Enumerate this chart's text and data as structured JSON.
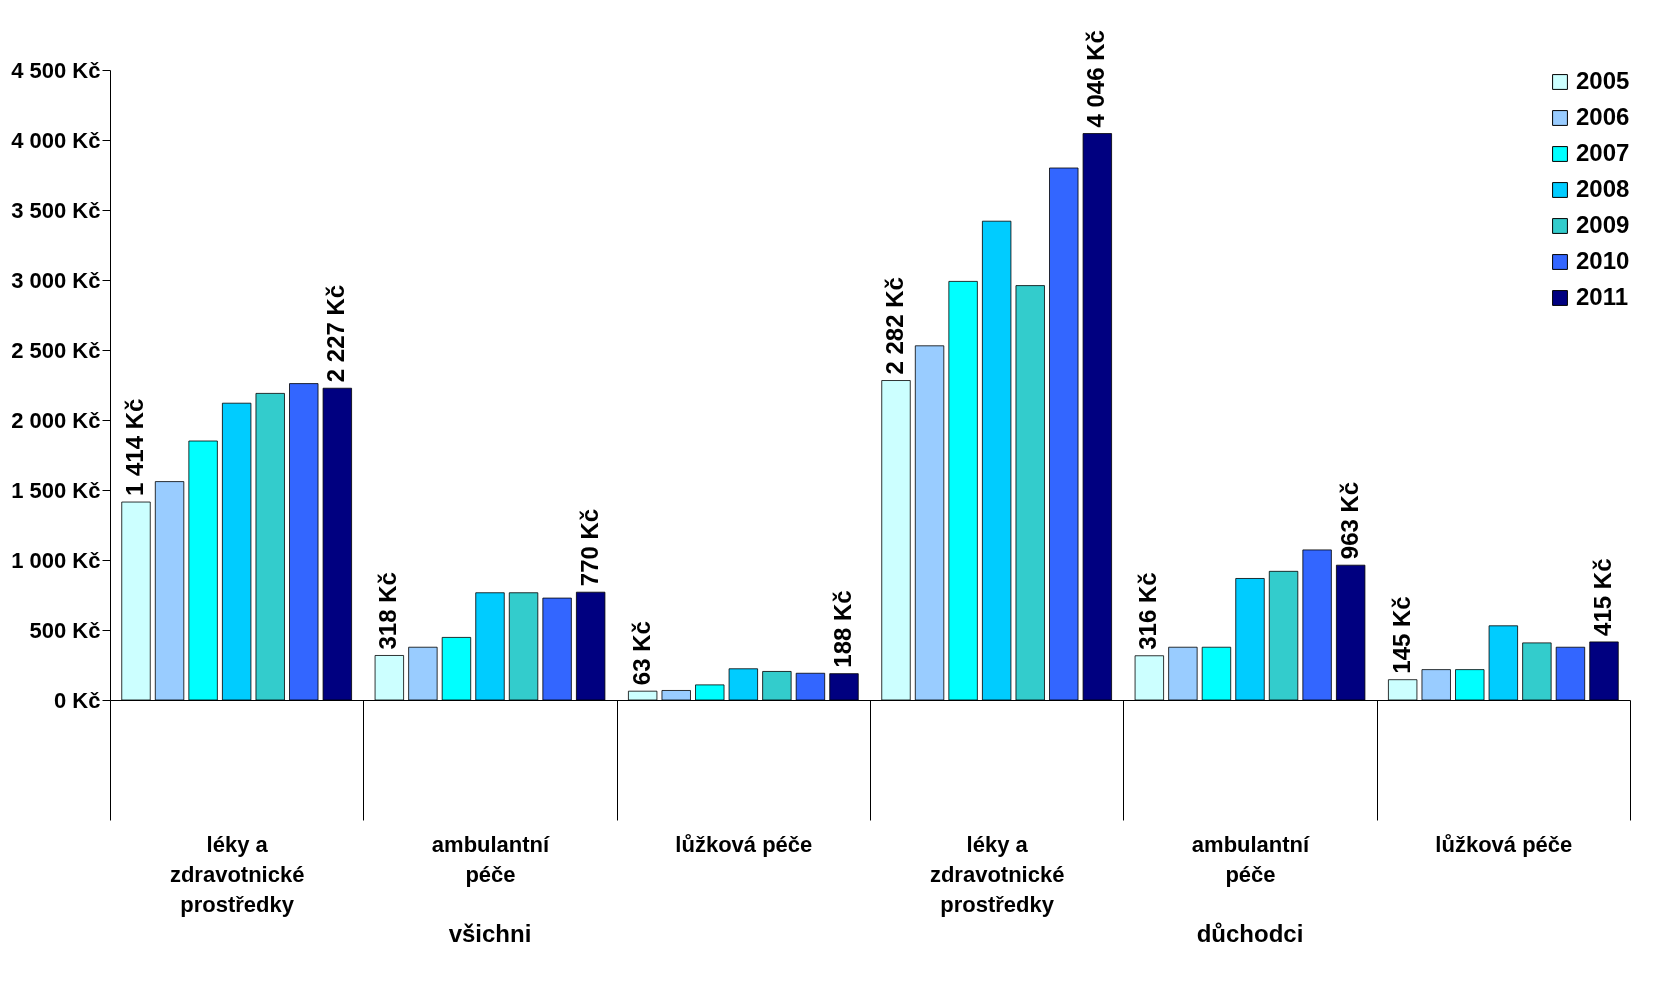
{
  "chart_data": {
    "type": "bar",
    "categories": [
      "léky a zdravotnické prostředky",
      "ambulantní péče",
      "lůžková péče",
      "léky a zdravotnické prostředky",
      "ambulantní péče",
      "lůžková péče"
    ],
    "annotations": [
      "všichni",
      "důchodci"
    ],
    "series": [
      {
        "name": "2005",
        "color": "#ccffff",
        "values": [
          1414,
          318,
          63,
          2282,
          316,
          145
        ],
        "value_labels": [
          "1 414 Kč",
          "318 Kč",
          "63 Kč",
          "2 282 Kč",
          "316 Kč",
          "145 Kč"
        ]
      },
      {
        "name": "2006",
        "color": "#99ccff",
        "values": [
          1560,
          377,
          68,
          2530,
          377,
          217
        ]
      },
      {
        "name": "2007",
        "color": "#00ffff",
        "values": [
          1850,
          447,
          108,
          2990,
          377,
          217
        ]
      },
      {
        "name": "2008",
        "color": "#00ccff",
        "values": [
          2120,
          766,
          223,
          3420,
          868,
          530
        ]
      },
      {
        "name": "2009",
        "color": "#33cccc",
        "values": [
          2190,
          766,
          204,
          2960,
          919,
          408
        ]
      },
      {
        "name": "2010",
        "color": "#3366ff",
        "values": [
          2260,
          728,
          191,
          3800,
          1072,
          377
        ]
      },
      {
        "name": "2011",
        "color": "#000080",
        "values": [
          2227,
          770,
          188,
          4046,
          963,
          415
        ],
        "value_labels": [
          "2 227 Kč",
          "770 Kč",
          "188 Kč",
          "4 046 Kč",
          "963 Kč",
          "415 Kč"
        ]
      }
    ],
    "ylim": [
      0,
      4500
    ],
    "yticks": [
      {
        "value": 0,
        "label": "0 Kč"
      },
      {
        "value": 500,
        "label": "500 Kč"
      },
      {
        "value": 1000,
        "label": "1 000 Kč"
      },
      {
        "value": 1500,
        "label": "1 500 Kč"
      },
      {
        "value": 2000,
        "label": "2 000 Kč"
      },
      {
        "value": 2500,
        "label": "2 500 Kč"
      },
      {
        "value": 3000,
        "label": "3 000 Kč"
      },
      {
        "value": 3500,
        "label": "3 500 Kč"
      },
      {
        "value": 4000,
        "label": "4 000 Kč"
      },
      {
        "value": 4500,
        "label": "4 500 Kč"
      }
    ],
    "grid": false,
    "legend": "top right"
  }
}
